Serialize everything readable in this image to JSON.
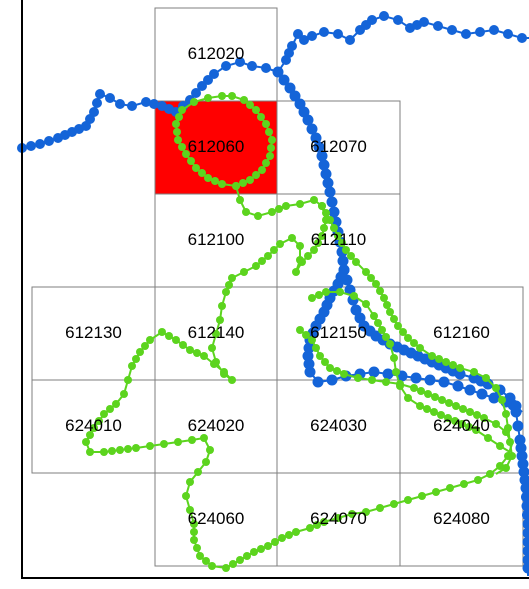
{
  "map": {
    "colors": {
      "grid_line": "#7f7f7f",
      "highlight_fill": "#ff0000",
      "blue_track": "#1464d8",
      "green_track": "#5cd41e",
      "frame": "#000000",
      "label": "#000000"
    },
    "highlighted_cell": "612060",
    "cells": [
      {
        "id": "612020",
        "label": "612020"
      },
      {
        "id": "612060",
        "label": "612060"
      },
      {
        "id": "612070",
        "label": "612070"
      },
      {
        "id": "612100",
        "label": "612100"
      },
      {
        "id": "612110",
        "label": "612110"
      },
      {
        "id": "612130",
        "label": "612130"
      },
      {
        "id": "612140",
        "label": "612140"
      },
      {
        "id": "612150",
        "label": "612150"
      },
      {
        "id": "612160",
        "label": "612160"
      },
      {
        "id": "624010",
        "label": "624010"
      },
      {
        "id": "624020",
        "label": "624020"
      },
      {
        "id": "624030",
        "label": "624030"
      },
      {
        "id": "624040",
        "label": "624040"
      },
      {
        "id": "624060",
        "label": "624060"
      },
      {
        "id": "624070",
        "label": "624070"
      },
      {
        "id": "624080",
        "label": "624080"
      }
    ],
    "tracks": [
      {
        "id": "blue-track",
        "color": "#1464d8"
      },
      {
        "id": "green-track",
        "color": "#5cd41e"
      }
    ]
  }
}
